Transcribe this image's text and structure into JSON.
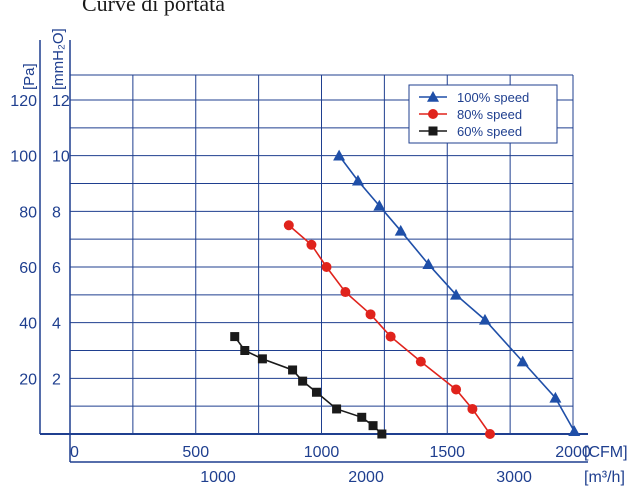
{
  "page": {
    "title": "Curve di portata"
  },
  "chart_data": {
    "type": "line",
    "xlabel_primary": "[CFM]",
    "xlabel_secondary": "[m³/h]",
    "ylabel_pa": "[Pa]",
    "ylabel_mmh2o": "[mmH₂O]",
    "xlim": [
      0,
      2000
    ],
    "ylim": [
      0,
      12
    ],
    "grid": true,
    "legend_position": "top-right",
    "x_ticks": [
      0,
      500,
      1000,
      1500,
      2000
    ],
    "x_tick_labels": [
      "0",
      "500",
      "1000",
      "1500",
      "2000"
    ],
    "x_secondary_ticks": [
      1000,
      2000,
      3000
    ],
    "x_secondary_tick_labels": [
      "1000",
      "2000",
      "3000"
    ],
    "y_ticks_mmh2o": [
      2,
      4,
      6,
      8,
      10,
      12
    ],
    "y_tick_labels_mmh2o": [
      "2",
      "4",
      "6",
      "8",
      "10",
      "12"
    ],
    "y_tick_labels_pa": [
      "20",
      "40",
      "60",
      "80",
      "100",
      "120"
    ],
    "series": [
      {
        "name": "100% speed",
        "color": "#1f4fa8",
        "marker": "triangle",
        "x": [
          1070,
          1145,
          1230,
          1315,
          1425,
          1535,
          1650,
          1800,
          1930,
          2005
        ],
        "y": [
          10.0,
          9.1,
          8.2,
          7.3,
          6.1,
          5.0,
          4.1,
          2.6,
          1.3,
          0.1
        ]
      },
      {
        "name": "80% speed",
        "color": "#e0231c",
        "marker": "circle",
        "x": [
          870,
          960,
          1020,
          1095,
          1195,
          1275,
          1395,
          1535,
          1600,
          1670
        ],
        "y": [
          7.5,
          6.8,
          6.0,
          5.1,
          4.3,
          3.5,
          2.6,
          1.6,
          0.9,
          0.0
        ]
      },
      {
        "name": "60% speed",
        "color": "#1a1a1a",
        "marker": "square",
        "x": [
          655,
          695,
          765,
          885,
          925,
          980,
          1060,
          1160,
          1205,
          1240
        ],
        "y": [
          3.5,
          3.0,
          2.7,
          2.3,
          1.9,
          1.5,
          0.9,
          0.6,
          0.3,
          0.0
        ]
      }
    ]
  }
}
